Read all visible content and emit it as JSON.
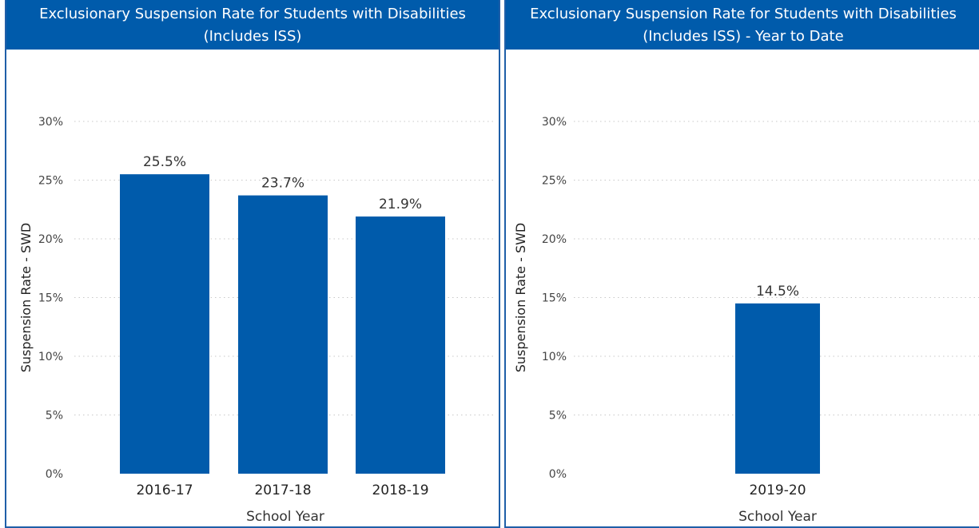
{
  "charts": [
    {
      "header": {
        "line1": "Exclusionary Suspension Rate for Students with Disabilities",
        "line2": "(Includes ISS)"
      }
    },
    {
      "header": {
        "line1": "Exclusionary Suspension Rate for Students with Disabilities",
        "line2": "(Includes ISS) - Year to Date"
      }
    }
  ],
  "colors": {
    "bar": "#005bab",
    "header": "#005bab",
    "border": "#1f5fa8",
    "grid": "#c8c8c8"
  },
  "chart_data": [
    {
      "type": "bar",
      "title": "Exclusionary Suspension Rate for Students with Disabilities (Includes ISS)",
      "categories": [
        "2016-17",
        "2017-18",
        "2018-19"
      ],
      "values": [
        25.5,
        23.7,
        21.9
      ],
      "data_labels": [
        "25.5%",
        "23.7%",
        "21.9%"
      ],
      "xlabel": "School Year",
      "ylabel": "Suspension Rate - SWD",
      "ylim": [
        0,
        30
      ],
      "yticks": [
        "0%",
        "5%",
        "10%",
        "15%",
        "20%",
        "25%",
        "30%"
      ],
      "grid": true
    },
    {
      "type": "bar",
      "title": "Exclusionary Suspension Rate for Students with Disabilities (Includes ISS) - Year to Date",
      "categories": [
        "2019-20"
      ],
      "values": [
        14.5
      ],
      "data_labels": [
        "14.5%"
      ],
      "xlabel": "School Year",
      "ylabel": "Suspension Rate - SWD",
      "ylim": [
        0,
        30
      ],
      "yticks": [
        "0%",
        "5%",
        "10%",
        "15%",
        "20%",
        "25%",
        "30%"
      ],
      "grid": true
    }
  ]
}
